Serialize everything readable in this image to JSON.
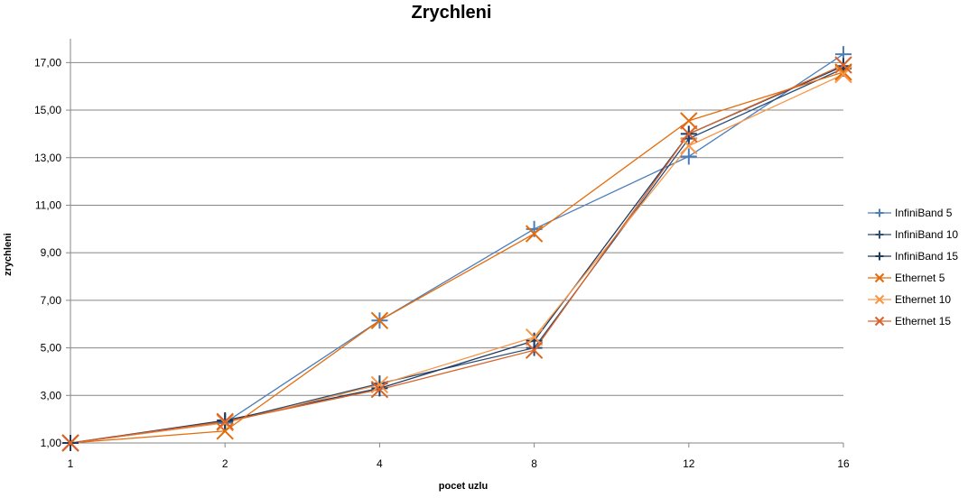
{
  "chart_data": {
    "type": "line",
    "title": "Zrychleni",
    "xlabel": "pocet uzlu",
    "ylabel": "zrychleni",
    "categories": [
      "1",
      "2",
      "4",
      "8",
      "12",
      "16"
    ],
    "y_ticks": [
      "1,00",
      "3,00",
      "5,00",
      "7,00",
      "9,00",
      "11,00",
      "13,00",
      "15,00",
      "17,00"
    ],
    "ylim": [
      1,
      18
    ],
    "grid": true,
    "legend_position": "right",
    "series": [
      {
        "name": "InfiniBand 5",
        "values": [
          1.0,
          1.85,
          6.15,
          10.0,
          13.05,
          17.35
        ],
        "color": "#4a7ebb",
        "marker": "plus"
      },
      {
        "name": "InfiniBand 10",
        "values": [
          1.0,
          1.9,
          3.5,
          5.0,
          13.8,
          16.75
        ],
        "color": "#2c4d75",
        "marker": "plus"
      },
      {
        "name": "InfiniBand 15",
        "values": [
          1.0,
          1.95,
          3.3,
          5.3,
          14.0,
          16.85
        ],
        "color": "#1f3a5f",
        "marker": "plus"
      },
      {
        "name": "Ethernet 5",
        "values": [
          1.0,
          1.5,
          6.15,
          9.8,
          14.55,
          16.6
        ],
        "color": "#e46c0a",
        "marker": "x"
      },
      {
        "name": "Ethernet 10",
        "values": [
          1.0,
          1.85,
          3.45,
          5.45,
          13.5,
          16.5
        ],
        "color": "#f79646",
        "marker": "x"
      },
      {
        "name": "Ethernet 15",
        "values": [
          1.0,
          1.9,
          3.25,
          4.9,
          14.0,
          16.9
        ],
        "color": "#d9632a",
        "marker": "x"
      }
    ]
  }
}
